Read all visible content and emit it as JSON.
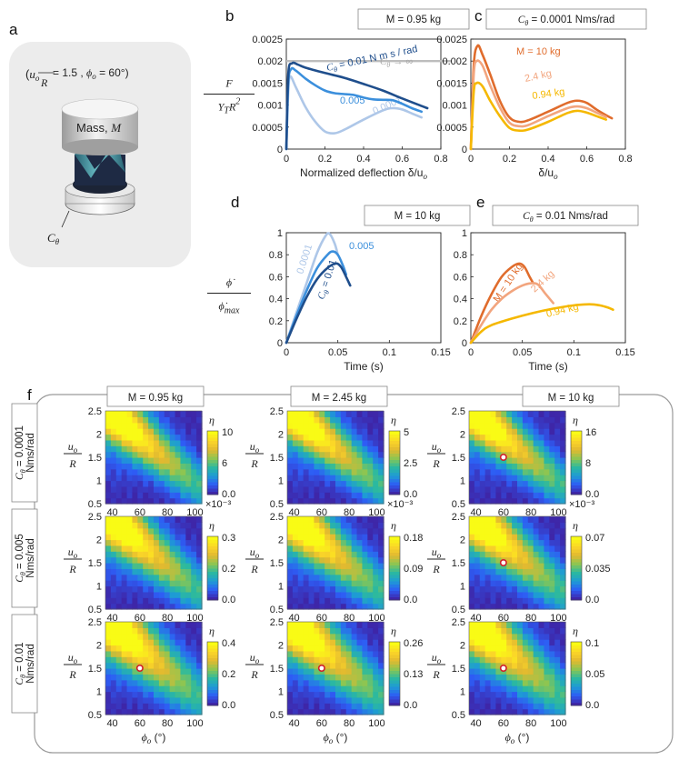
{
  "panel_a": {
    "letter": "a",
    "header_prefix": "(",
    "header_u": "u",
    "header_u_sub": "o",
    "header_R": "R",
    "header_eq_val": " = 1.5 , ",
    "header_phi": "ϕ",
    "header_phi_sub": "o",
    "header_phi_val": " = 60°)",
    "mass_label": "Mass, ",
    "mass_symbol": "M",
    "damper_symbol": "C",
    "damper_sub": "θ"
  },
  "chart_data": [
    {
      "id": "b",
      "letter": "b",
      "type": "line",
      "box_label": "M = 0.95 kg",
      "ylabel_num": "F",
      "ylabel_den_a": "Y",
      "ylabel_den_sub": "T",
      "ylabel_den_b": "R",
      "ylabel_den_sup": "2",
      "xlabel": "Normalized deflection δ/u",
      "xlabel_sub": "o",
      "xlim": [
        0,
        0.8
      ],
      "ylim": [
        0,
        0.0025
      ],
      "xticks": [
        0,
        0.2,
        0.4,
        0.6,
        0.8
      ],
      "xtick_labels": [
        "0",
        "0.2",
        "0.4",
        "0.6",
        "0.8"
      ],
      "yticks": [
        0,
        0.0005,
        0.001,
        0.0015,
        0.002,
        0.0025
      ],
      "ytick_labels": [
        "0",
        "0.0005",
        "0.001",
        "0.0015",
        "0.002",
        "0.0025"
      ],
      "reference_line": {
        "y": 0.002,
        "label": "C",
        "label_sub": "θ",
        "label_tail": " → ∞",
        "color": "#bdbdbd"
      },
      "series": [
        {
          "name": "0.0001",
          "label": "0.0001",
          "color": "#aec7e8",
          "points": [
            [
              0,
              0
            ],
            [
              0.01,
              0.0013
            ],
            [
              0.02,
              0.00165
            ],
            [
              0.05,
              0.0014
            ],
            [
              0.1,
              0.00095
            ],
            [
              0.15,
              0.00062
            ],
            [
              0.2,
              0.0004
            ],
            [
              0.25,
              0.00036
            ],
            [
              0.3,
              0.00044
            ],
            [
              0.4,
              0.00067
            ],
            [
              0.5,
              0.00088
            ],
            [
              0.55,
              0.00093
            ],
            [
              0.6,
              0.0009
            ],
            [
              0.65,
              0.00081
            ],
            [
              0.7,
              0.00072
            ]
          ]
        },
        {
          "name": "0.005",
          "label": "0.005",
          "color": "#3b8fdc",
          "points": [
            [
              0,
              0
            ],
            [
              0.01,
              0.0015
            ],
            [
              0.025,
              0.00182
            ],
            [
              0.05,
              0.00178
            ],
            [
              0.1,
              0.0016
            ],
            [
              0.15,
              0.00145
            ],
            [
              0.2,
              0.00133
            ],
            [
              0.25,
              0.00127
            ],
            [
              0.3,
              0.00125
            ],
            [
              0.35,
              0.00123
            ],
            [
              0.4,
              0.00117
            ],
            [
              0.45,
              0.00113
            ],
            [
              0.5,
              0.00112
            ],
            [
              0.55,
              0.00111
            ],
            [
              0.6,
              0.00103
            ],
            [
              0.65,
              0.00093
            ],
            [
              0.7,
              0.00085
            ]
          ]
        },
        {
          "name": "0.01",
          "label": "C",
          "label_sub": "θ",
          "label_tail": " = 0.01 N m s / rad",
          "color": "#1f4e8c",
          "points": [
            [
              0,
              0
            ],
            [
              0.01,
              0.0017
            ],
            [
              0.03,
              0.00195
            ],
            [
              0.06,
              0.00192
            ],
            [
              0.1,
              0.00185
            ],
            [
              0.2,
              0.00173
            ],
            [
              0.3,
              0.00162
            ],
            [
              0.4,
              0.00148
            ],
            [
              0.5,
              0.00133
            ],
            [
              0.6,
              0.00115
            ],
            [
              0.7,
              0.00098
            ],
            [
              0.73,
              0.00093
            ]
          ]
        }
      ]
    },
    {
      "id": "c",
      "letter": "c",
      "type": "line",
      "box_label": "C",
      "box_label_sub": "θ",
      "box_label_tail": " = 0.0001 Nms/rad",
      "xlabel": "δ/u",
      "xlabel_sub": "o",
      "xlim": [
        0,
        0.8
      ],
      "ylim": [
        0,
        0.0025
      ],
      "xticks": [
        0,
        0.2,
        0.4,
        0.6,
        0.8
      ],
      "xtick_labels": [
        "0",
        "0.2",
        "0.4",
        "0.6",
        "0.8"
      ],
      "yticks": [
        0,
        0.0005,
        0.001,
        0.0015,
        0.002,
        0.0025
      ],
      "ytick_labels": [
        "0",
        "0.0005",
        "0.001",
        "0.0015",
        "0.002",
        "0.0025"
      ],
      "series": [
        {
          "name": "M = 10 kg",
          "label": "M = 10 kg",
          "color": "#e06c2c",
          "points": [
            [
              0,
              0
            ],
            [
              0.015,
              0.0019
            ],
            [
              0.035,
              0.00235
            ],
            [
              0.06,
              0.00215
            ],
            [
              0.1,
              0.0017
            ],
            [
              0.15,
              0.0011
            ],
            [
              0.2,
              0.00072
            ],
            [
              0.25,
              0.00062
            ],
            [
              0.3,
              0.00066
            ],
            [
              0.4,
              0.00085
            ],
            [
              0.5,
              0.00105
            ],
            [
              0.55,
              0.0011
            ],
            [
              0.6,
              0.00105
            ],
            [
              0.65,
              0.0009
            ],
            [
              0.7,
              0.00077
            ],
            [
              0.73,
              0.0007
            ]
          ]
        },
        {
          "name": "2.4 kg",
          "label": "2.4 kg",
          "color": "#f2a57e",
          "points": [
            [
              0,
              0
            ],
            [
              0.015,
              0.0017
            ],
            [
              0.03,
              0.002
            ],
            [
              0.06,
              0.0019
            ],
            [
              0.1,
              0.00145
            ],
            [
              0.15,
              0.00095
            ],
            [
              0.2,
              0.0006
            ],
            [
              0.25,
              0.00052
            ],
            [
              0.3,
              0.00055
            ],
            [
              0.4,
              0.00075
            ],
            [
              0.5,
              0.00093
            ],
            [
              0.55,
              0.00097
            ],
            [
              0.6,
              0.00093
            ],
            [
              0.65,
              0.00083
            ],
            [
              0.7,
              0.00073
            ]
          ]
        },
        {
          "name": "0.94 kg",
          "label": "0.94 kg",
          "color": "#f5b800",
          "points": [
            [
              0,
              0
            ],
            [
              0.015,
              0.0013
            ],
            [
              0.03,
              0.0015
            ],
            [
              0.06,
              0.00143
            ],
            [
              0.1,
              0.0011
            ],
            [
              0.15,
              0.00075
            ],
            [
              0.2,
              0.00048
            ],
            [
              0.25,
              0.00042
            ],
            [
              0.3,
              0.00045
            ],
            [
              0.4,
              0.00062
            ],
            [
              0.5,
              0.00082
            ],
            [
              0.55,
              0.00087
            ],
            [
              0.6,
              0.00083
            ],
            [
              0.65,
              0.00075
            ],
            [
              0.7,
              0.00067
            ]
          ]
        }
      ]
    },
    {
      "id": "d",
      "letter": "d",
      "type": "line",
      "box_label": "M = 10 kg",
      "ylabel_num": "ϕ̇",
      "ylabel_den": "ϕ̇",
      "ylabel_den_sub": "max",
      "xlabel": "Time (s)",
      "xlim": [
        0,
        0.15
      ],
      "ylim": [
        0,
        1
      ],
      "xticks": [
        0,
        0.05,
        0.1,
        0.15
      ],
      "xtick_labels": [
        "0",
        "0.05",
        "0.1",
        "0.15"
      ],
      "yticks": [
        0,
        0.2,
        0.4,
        0.6,
        0.8,
        1
      ],
      "ytick_labels": [
        "0",
        "0.2",
        "0.4",
        "0.6",
        "0.8",
        "1"
      ],
      "series": [
        {
          "name": "0.0001",
          "label": "0.0001",
          "color": "#aec7e8",
          "points": [
            [
              0,
              0
            ],
            [
              0.01,
              0.28
            ],
            [
              0.02,
              0.55
            ],
            [
              0.03,
              0.82
            ],
            [
              0.038,
              0.97
            ],
            [
              0.042,
              0.99
            ],
            [
              0.047,
              0.9
            ],
            [
              0.05,
              0.8
            ]
          ]
        },
        {
          "name": "0.005",
          "label": "0.005",
          "color": "#3b8fdc",
          "points": [
            [
              0,
              0
            ],
            [
              0.01,
              0.25
            ],
            [
              0.02,
              0.48
            ],
            [
              0.03,
              0.68
            ],
            [
              0.04,
              0.8
            ],
            [
              0.045,
              0.83
            ],
            [
              0.05,
              0.8
            ],
            [
              0.055,
              0.7
            ],
            [
              0.058,
              0.62
            ]
          ]
        },
        {
          "name": "0.01",
          "label": "C",
          "label_sub": "θ",
          "label_tail": " = 0.01",
          "color": "#1f4e8c",
          "points": [
            [
              0,
              0
            ],
            [
              0.01,
              0.22
            ],
            [
              0.02,
              0.42
            ],
            [
              0.03,
              0.58
            ],
            [
              0.04,
              0.68
            ],
            [
              0.048,
              0.72
            ],
            [
              0.053,
              0.69
            ],
            [
              0.058,
              0.6
            ],
            [
              0.062,
              0.52
            ]
          ]
        }
      ]
    },
    {
      "id": "e",
      "letter": "e",
      "type": "line",
      "box_label": "C",
      "box_label_sub": "θ",
      "box_label_tail": " = 0.01 Nms/rad",
      "xlabel": "Time (s)",
      "xlim": [
        0,
        0.15
      ],
      "ylim": [
        0,
        1
      ],
      "xticks": [
        0,
        0.05,
        0.1,
        0.15
      ],
      "xtick_labels": [
        "0",
        "0.05",
        "0.1",
        "0.15"
      ],
      "yticks": [
        0,
        0.2,
        0.4,
        0.6,
        0.8,
        1
      ],
      "ytick_labels": [
        "0",
        "0.2",
        "0.4",
        "0.6",
        "0.8",
        "1"
      ],
      "series": [
        {
          "name": "M = 10 kg",
          "label": "M = 10 kg",
          "color": "#e06c2c",
          "points": [
            [
              0,
              0
            ],
            [
              0.01,
              0.24
            ],
            [
              0.02,
              0.44
            ],
            [
              0.03,
              0.6
            ],
            [
              0.04,
              0.69
            ],
            [
              0.047,
              0.72
            ],
            [
              0.052,
              0.69
            ],
            [
              0.057,
              0.6
            ],
            [
              0.06,
              0.55
            ]
          ]
        },
        {
          "name": "2.4 kg",
          "label": "2.4 kg",
          "color": "#f2a57e",
          "points": [
            [
              0,
              0
            ],
            [
              0.01,
              0.16
            ],
            [
              0.02,
              0.3
            ],
            [
              0.03,
              0.4
            ],
            [
              0.04,
              0.47
            ],
            [
              0.05,
              0.52
            ],
            [
              0.058,
              0.54
            ],
            [
              0.065,
              0.53
            ],
            [
              0.072,
              0.45
            ],
            [
              0.08,
              0.36
            ]
          ]
        },
        {
          "name": "0.94 kg",
          "label": "0.94 kg",
          "color": "#f5b800",
          "points": [
            [
              0,
              0
            ],
            [
              0.01,
              0.1
            ],
            [
              0.02,
              0.16
            ],
            [
              0.04,
              0.22
            ],
            [
              0.06,
              0.27
            ],
            [
              0.08,
              0.31
            ],
            [
              0.1,
              0.34
            ],
            [
              0.115,
              0.35
            ],
            [
              0.125,
              0.34
            ],
            [
              0.133,
              0.32
            ],
            [
              0.138,
              0.3
            ]
          ]
        }
      ]
    },
    {
      "id": "f",
      "letter": "f",
      "type": "heatmap",
      "column_headers": [
        "M = 0.95 kg",
        "M = 2.45 kg",
        "M = 10 kg"
      ],
      "row_headers": [
        {
          "label": "C",
          "sub": "θ",
          "tail": " = 0.0001",
          "line2": "Nms/rad"
        },
        {
          "label": "C",
          "sub": "θ",
          "tail": " = 0.005",
          "line2": "Nms/rad"
        },
        {
          "label": "C",
          "sub": "θ",
          "tail": " = 0.01",
          "line2": "Nms/rad"
        }
      ],
      "xlabel": "ϕ",
      "xlabel_sub": "o",
      "xlabel_unit": " (°)",
      "ylabel_num": "u",
      "ylabel_num_sub": "o",
      "ylabel_den": "R",
      "xlim": [
        35,
        105
      ],
      "ylim": [
        0.5,
        2.5
      ],
      "xticks": [
        40,
        60,
        80,
        100
      ],
      "xtick_labels": [
        "40",
        "60",
        "80",
        "100"
      ],
      "yticks": [
        0.5,
        1,
        1.5,
        2,
        2.5
      ],
      "ytick_labels": [
        "0.5",
        "1",
        "1.5",
        "2",
        "2.5"
      ],
      "colorbar_title": "η",
      "colormap": [
        "#3e26a8",
        "#2e5cf5",
        "#1e9bd5",
        "#2bb9a0",
        "#8ac653",
        "#e1b930",
        "#fbd528",
        "#f9fb15"
      ],
      "cells": [
        {
          "row": 0,
          "col": 0,
          "vmax": 0.01,
          "cb_ticks": [
            "10",
            "6",
            "0.0"
          ],
          "cb_exp": "×10⁻³",
          "marker": false
        },
        {
          "row": 0,
          "col": 1,
          "vmax": 0.005,
          "cb_ticks": [
            "5",
            "2.5",
            "0.0"
          ],
          "cb_exp": "×10⁻³",
          "marker": false
        },
        {
          "row": 0,
          "col": 2,
          "vmax": 0.016,
          "cb_ticks": [
            "16",
            "8",
            "0.0"
          ],
          "cb_exp": "×10⁻³",
          "marker": true,
          "marker_x": 60,
          "marker_y": 1.5
        },
        {
          "row": 1,
          "col": 0,
          "vmax": 0.3,
          "cb_ticks": [
            "0.3",
            "0.2",
            "0.0"
          ],
          "cb_exp": "",
          "marker": false
        },
        {
          "row": 1,
          "col": 1,
          "vmax": 0.18,
          "cb_ticks": [
            "0.18",
            "0.09",
            "0.0"
          ],
          "cb_exp": "",
          "marker": false
        },
        {
          "row": 1,
          "col": 2,
          "vmax": 0.07,
          "cb_ticks": [
            "0.07",
            "0.035",
            "0.0"
          ],
          "cb_exp": "",
          "marker": true,
          "marker_x": 60,
          "marker_y": 1.5
        },
        {
          "row": 2,
          "col": 0,
          "vmax": 0.4,
          "cb_ticks": [
            "0.4",
            "0.2",
            "0.0"
          ],
          "cb_exp": "",
          "marker": true,
          "marker_x": 60,
          "marker_y": 1.5
        },
        {
          "row": 2,
          "col": 1,
          "vmax": 0.26,
          "cb_ticks": [
            "0.26",
            "0.13",
            "0.0"
          ],
          "cb_exp": "",
          "marker": true,
          "marker_x": 60,
          "marker_y": 1.5
        },
        {
          "row": 2,
          "col": 2,
          "vmax": 0.1,
          "cb_ticks": [
            "0.1",
            "0.05",
            "0.0"
          ],
          "cb_exp": "",
          "marker": true,
          "marker_x": 60,
          "marker_y": 1.5
        }
      ]
    }
  ]
}
